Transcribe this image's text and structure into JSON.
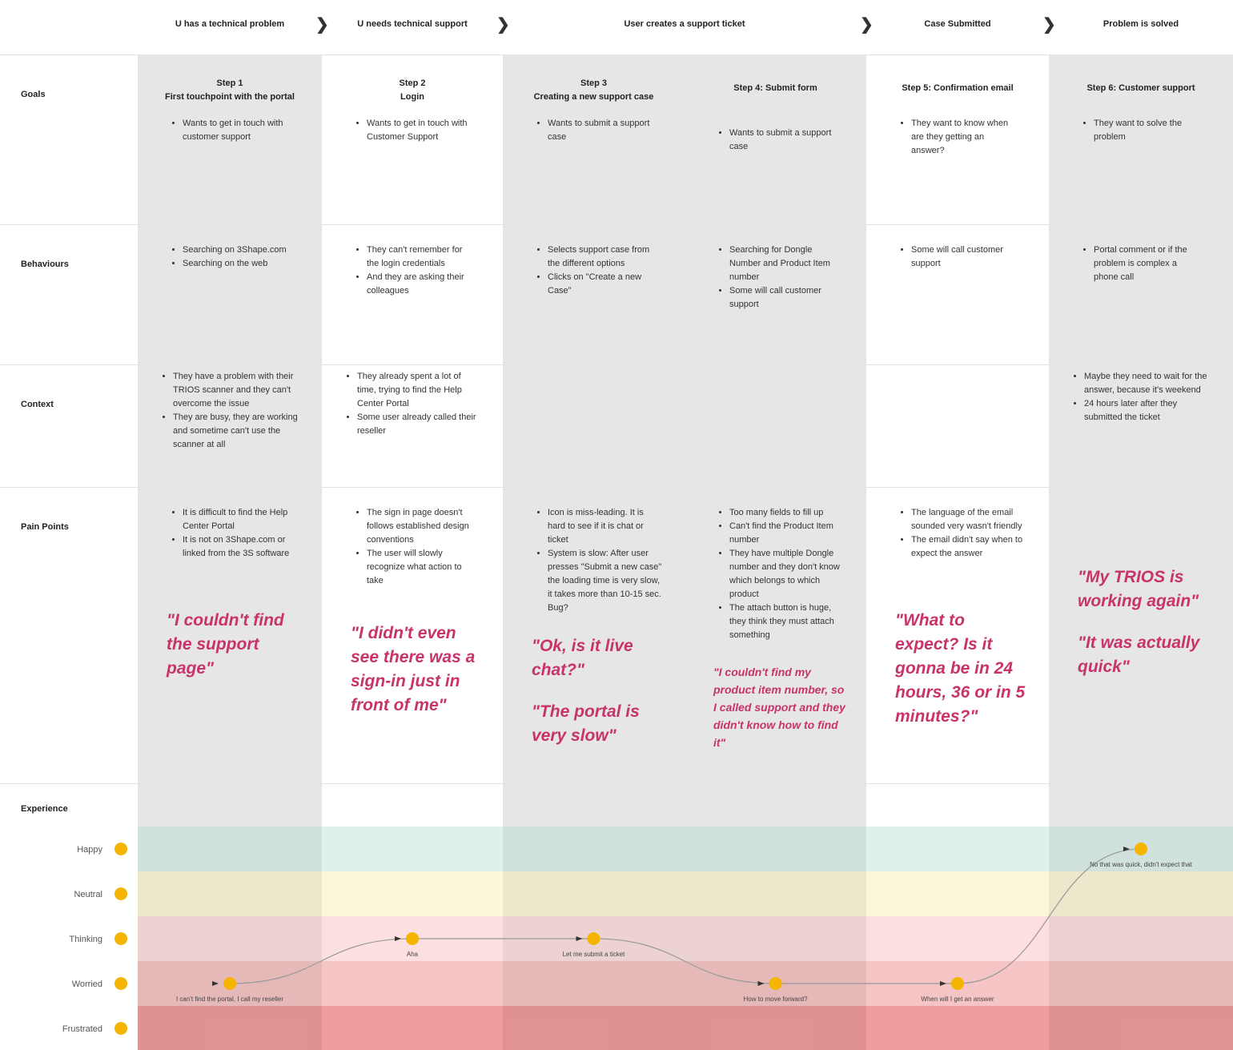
{
  "phases": [
    "U has a technical problem",
    "U needs technical support",
    "User creates a support ticket",
    "Case Submitted",
    "Problem is solved"
  ],
  "rows": [
    "Goals",
    "Behaviours",
    "Context",
    "Pain Points",
    "Experience"
  ],
  "steps": [
    {
      "title": "Step 1\nFirst touchpoint with the portal",
      "goals": [
        "Wants to get in touch with customer support"
      ],
      "behaviours": [
        "Searching on 3Shape.com",
        "Searching on the web"
      ],
      "context": [
        "They have a problem with their TRIOS scanner and they can't overcome the issue",
        "They are busy, they are working and sometime can't use the scanner at all"
      ],
      "pain_points": [
        "It is difficult to find the Help Center Portal",
        "It is not on 3Shape.com or linked from the 3S software"
      ],
      "quotes": [
        "\"I couldn't find the support page\""
      ]
    },
    {
      "title": "Step 2\nLogin",
      "goals": [
        "Wants to get in touch with Customer Support"
      ],
      "behaviours": [
        "They can't remember for the login credentials",
        "And they are asking their colleagues"
      ],
      "context": [
        "They already spent a lot of time, trying to find the Help Center Portal",
        "Some user already called their reseller"
      ],
      "pain_points": [
        "The sign in page doesn't follows established design conventions",
        "The user will slowly recognize what action to take"
      ],
      "quotes": [
        "\"I didn't even see there was a sign-in just in front of me\""
      ]
    },
    {
      "title": "Step 3\nCreating a new support case",
      "goals": [
        "Wants to submit a support case"
      ],
      "behaviours": [
        "Selects support case from the different options",
        "Clicks on \"Create a new Case\""
      ],
      "context": [],
      "pain_points": [
        "Icon is miss-leading. It is hard to see if it is chat or ticket",
        "System is slow: After user presses \"Submit a new case\" the loading time is very slow, it takes more than 10-15 sec. Bug?"
      ],
      "quotes": [
        "\"Ok, is it live chat?\"",
        "\"The portal is very slow\""
      ]
    },
    {
      "title": "Step 4: Submit form",
      "goals": [
        "Wants to submit a support case"
      ],
      "behaviours": [
        "Searching for Dongle Number and Product Item number",
        "Some will call customer support"
      ],
      "context": [],
      "pain_points": [
        "Too many fields to fill up",
        "Can't find the Product Item number",
        "They have multiple Dongle number and they don't know which belongs to which product",
        "The attach button is huge, they think they must attach something"
      ],
      "quotes": [
        "\"I couldn't find my product item number, so I called support and they didn't know how to find it\""
      ]
    },
    {
      "title": "Step 5: Confirmation email",
      "goals": [
        "They want to know when are they getting an answer?"
      ],
      "behaviours": [
        "Some will call customer support"
      ],
      "context": [],
      "pain_points": [
        "The language of the email sounded very wasn't friendly",
        "The email didn't say when to expect the answer"
      ],
      "quotes": [
        "\"What to expect? Is it gonna be in 24 hours, 36 or in 5 minutes?\""
      ]
    },
    {
      "title": "Step 6: Customer support",
      "goals": [
        "They want to solve the problem"
      ],
      "behaviours": [
        "Portal comment or if the problem is complex a phone call"
      ],
      "context": [
        "Maybe they need to wait for the answer, because it's weekend",
        "24 hours later after they submitted the ticket"
      ],
      "pain_points": [],
      "quotes": [
        "\"My TRIOS is working again\"",
        "\"It was actually quick\""
      ]
    }
  ],
  "experience": {
    "levels": [
      "Happy",
      "Neutral",
      "Thinking",
      "Worried",
      "Frustrated"
    ],
    "points": [
      {
        "level": "Worried",
        "label": "I can't find the portal, I call my reseller"
      },
      {
        "level": "Thinking",
        "label": "Aha"
      },
      {
        "level": "Thinking",
        "label": "Let me submit a ticket"
      },
      {
        "level": "Worried",
        "label": "How to move forward?"
      },
      {
        "level": "Worried",
        "label": "When will I get an answer"
      },
      {
        "level": "Happy",
        "label": "No that was quick, didn't expect that"
      }
    ]
  }
}
